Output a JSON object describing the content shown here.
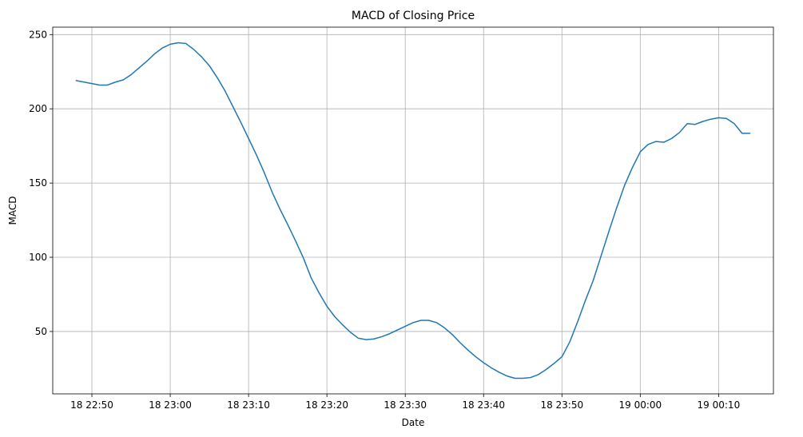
{
  "chart_data": {
    "type": "line",
    "title": "MACD of Closing Price",
    "xlabel": "Date",
    "ylabel": "MACD",
    "grid": true,
    "x_ticks": [
      {
        "value": "18 22:50",
        "label": "18 22:50"
      },
      {
        "value": "18 23:00",
        "label": "18 23:00"
      },
      {
        "value": "18 23:10",
        "label": "18 23:10"
      },
      {
        "value": "18 23:20",
        "label": "18 23:20"
      },
      {
        "value": "18 23:30",
        "label": "18 23:30"
      },
      {
        "value": "18 23:40",
        "label": "18 23:40"
      },
      {
        "value": "18 23:50",
        "label": "18 23:50"
      },
      {
        "value": "19 00:00",
        "label": "19 00:00"
      },
      {
        "value": "19 00:10",
        "label": "19 00:10"
      }
    ],
    "y_ticks": [
      50,
      100,
      150,
      200,
      250
    ],
    "xlim": [
      "18 22:45",
      "19 00:17"
    ],
    "ylim": [
      8,
      255
    ],
    "series": [
      {
        "color": "#1f77b4",
        "x": [
          "18 22:48",
          "18 22:49",
          "18 22:50",
          "18 22:51",
          "18 22:52",
          "18 22:53",
          "18 22:54",
          "18 22:55",
          "18 22:56",
          "18 22:57",
          "18 22:58",
          "18 22:59",
          "18 23:00",
          "18 23:01",
          "18 23:02",
          "18 23:03",
          "18 23:04",
          "18 23:05",
          "18 23:06",
          "18 23:07",
          "18 23:08",
          "18 23:09",
          "18 23:10",
          "18 23:11",
          "18 23:12",
          "18 23:13",
          "18 23:14",
          "18 23:15",
          "18 23:16",
          "18 23:17",
          "18 23:18",
          "18 23:19",
          "18 23:20",
          "18 23:21",
          "18 23:22",
          "18 23:23",
          "18 23:24",
          "18 23:25",
          "18 23:26",
          "18 23:27",
          "18 23:28",
          "18 23:29",
          "18 23:30",
          "18 23:31",
          "18 23:32",
          "18 23:33",
          "18 23:34",
          "18 23:35",
          "18 23:36",
          "18 23:37",
          "18 23:38",
          "18 23:39",
          "18 23:40",
          "18 23:41",
          "18 23:42",
          "18 23:43",
          "18 23:44",
          "18 23:45",
          "18 23:46",
          "18 23:47",
          "18 23:48",
          "18 23:49",
          "18 23:50",
          "18 23:51",
          "18 23:52",
          "18 23:53",
          "18 23:54",
          "18 23:55",
          "18 23:56",
          "18 23:57",
          "18 23:58",
          "18 23:59",
          "19 00:00",
          "19 00:01",
          "19 00:02",
          "19 00:03",
          "19 00:04",
          "19 00:05",
          "19 00:06",
          "19 00:07",
          "19 00:08",
          "19 00:09",
          "19 00:10",
          "19 00:11",
          "19 00:12",
          "19 00:13",
          "19 00:14"
        ],
        "y": [
          219,
          218,
          217,
          216,
          216,
          218,
          219.5,
          223,
          227.5,
          232,
          237,
          241,
          243.5,
          244.5,
          244,
          240,
          235,
          229,
          221,
          212,
          201.5,
          191,
          180,
          169,
          157,
          144,
          132.5,
          122,
          111,
          99.5,
          86,
          76,
          67,
          60,
          54.5,
          49.5,
          45.5,
          44.5,
          45,
          46.5,
          48.5,
          51,
          53.5,
          56,
          57.5,
          57.5,
          56,
          52.5,
          48,
          42.5,
          37.5,
          33,
          29,
          25.5,
          22.5,
          20,
          18.5,
          18.5,
          19,
          21,
          24.5,
          28.5,
          33,
          43,
          56.5,
          71,
          84.5,
          101,
          117.5,
          133.5,
          148.5,
          160.5,
          171,
          176,
          178,
          177.5,
          180,
          184,
          190,
          189.5,
          191.5,
          193,
          194,
          193.5,
          190,
          183.5,
          183.5
        ]
      }
    ]
  }
}
